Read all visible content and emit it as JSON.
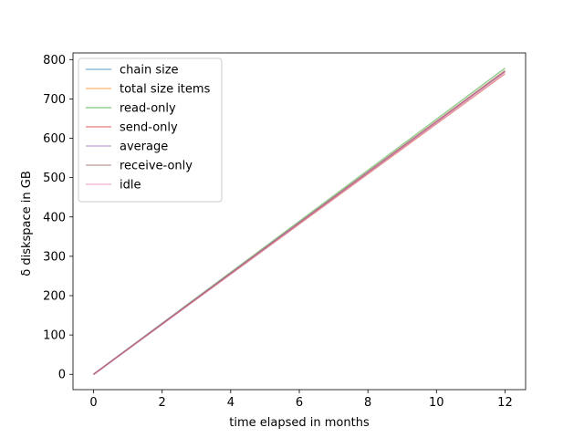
{
  "chart_data": {
    "type": "line",
    "title": "",
    "xlabel": "time elapsed in months",
    "ylabel": "δ diskspace in GB",
    "xlim": [
      -0.6,
      12.6
    ],
    "ylim": [
      -38.9,
      816.9
    ],
    "xticks": [
      0,
      2,
      4,
      6,
      8,
      10,
      12
    ],
    "yticks": [
      0,
      100,
      200,
      300,
      400,
      500,
      600,
      700,
      800
    ],
    "grid": false,
    "legend_position": "top-left",
    "series": [
      {
        "name": "chain size",
        "color": "#1f77b4",
        "x": [
          0,
          12
        ],
        "y": [
          0,
          770
        ]
      },
      {
        "name": "total size items",
        "color": "#ff7f0e",
        "x": [
          0,
          12
        ],
        "y": [
          0,
          772
        ]
      },
      {
        "name": "read-only",
        "color": "#2ca02c",
        "x": [
          0,
          12
        ],
        "y": [
          0,
          778
        ]
      },
      {
        "name": "send-only",
        "color": "#d62728",
        "x": [
          0,
          12
        ],
        "y": [
          0,
          764
        ]
      },
      {
        "name": "average",
        "color": "#9467bd",
        "x": [
          0,
          12
        ],
        "y": [
          0,
          771
        ]
      },
      {
        "name": "receive-only",
        "color": "#8c564b",
        "x": [
          0,
          12
        ],
        "y": [
          0,
          770
        ]
      },
      {
        "name": "idle",
        "color": "#e377c2",
        "x": [
          0,
          12
        ],
        "y": [
          0,
          769
        ]
      }
    ]
  }
}
